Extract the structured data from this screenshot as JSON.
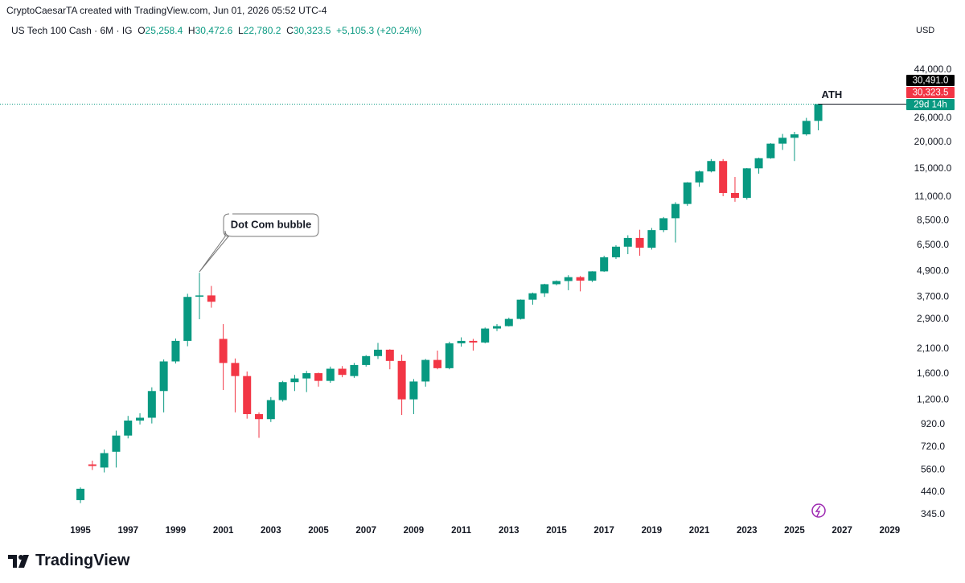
{
  "caption": "CryptoCaesarTA created with TradingView.com, Jun 01, 2026 05:52 UTC-4",
  "header": {
    "symbol": "US Tech 100 Cash · 6M · IG",
    "o_key": "O",
    "open": "25,258.4",
    "h_key": "H",
    "high": "30,472.6",
    "l_key": "L",
    "low": "22,780.2",
    "c_key": "C",
    "close": "30,323.5",
    "change": "+5,105.3 (+20.24%)"
  },
  "currency": "USD",
  "price_tags": [
    {
      "text": "30,491.0",
      "color": "#000000"
    },
    {
      "text": "30,323.5",
      "color": "#f23645"
    },
    {
      "text": "29d 14h",
      "color": "#089981"
    }
  ],
  "brand": "TradingView",
  "chart_data": {
    "type": "candlestick",
    "log_scale": true,
    "grid": false,
    "up_color": "#089981",
    "down_color": "#f23645",
    "x": [
      1995,
      1995.5,
      1996,
      1996.5,
      1997,
      1997.5,
      1998,
      1998.5,
      1999,
      1999.5,
      2000,
      2000.5,
      2001,
      2001.5,
      2002,
      2002.5,
      2003,
      2003.5,
      2004,
      2004.5,
      2005,
      2005.5,
      2006,
      2006.5,
      2007,
      2007.5,
      2008,
      2008.5,
      2009,
      2009.5,
      2010,
      2010.5,
      2011,
      2011.5,
      2012,
      2012.5,
      2013,
      2013.5,
      2014,
      2014.5,
      2015,
      2015.5,
      2016,
      2016.5,
      2017,
      2017.5,
      2018,
      2018.5,
      2019,
      2019.5,
      2020,
      2020.5,
      2021,
      2021.5,
      2022,
      2022.5,
      2023,
      2023.5,
      2024,
      2024.5,
      2025,
      2025.5,
      2026
    ],
    "open": [
      403,
      595,
      575,
      683,
      815,
      960,
      990,
      1325,
      1830,
      2290,
      3710,
      3760,
      2340,
      1800,
      1560,
      1030,
      975,
      1200,
      1460,
      1520,
      1610,
      1480,
      1690,
      1560,
      1760,
      1940,
      2080,
      1840,
      1210,
      1470,
      1860,
      1700,
      2230,
      2290,
      2250,
      2620,
      2690,
      2910,
      3590,
      3850,
      4250,
      4400,
      4590,
      4420,
      4890,
      5700,
      6400,
      7040,
      6330,
      7670,
      8730,
      10200,
      12900,
      14550,
      16300,
      11500,
      10900,
      15050,
      16800,
      19700,
      21000,
      21800,
      25258.4
    ],
    "high": [
      463,
      620,
      700,
      860,
      1010,
      1040,
      1380,
      1870,
      2350,
      3830,
      4816,
      4170,
      2750,
      1890,
      1640,
      1050,
      1240,
      1480,
      1580,
      1650,
      1620,
      1730,
      1740,
      1800,
      1960,
      2240,
      2090,
      1970,
      1510,
      1880,
      2060,
      2270,
      2380,
      2340,
      2650,
      2750,
      2950,
      3600,
      3880,
      4270,
      4430,
      4690,
      4650,
      4900,
      5800,
      6500,
      7250,
      7700,
      7850,
      8850,
      10400,
      12950,
      14700,
      16650,
      16650,
      13700,
      15100,
      16900,
      19800,
      21900,
      22400,
      26100,
      30472.6
    ],
    "low": [
      390,
      560,
      545,
      575,
      790,
      920,
      930,
      1050,
      1790,
      2160,
      2900,
      3290,
      1340,
      1050,
      980,
      795,
      945,
      1180,
      1325,
      1310,
      1390,
      1450,
      1540,
      1530,
      1730,
      1880,
      1680,
      1020,
      1030,
      1390,
      1680,
      1680,
      2150,
      2060,
      2230,
      2550,
      2680,
      2890,
      3400,
      3700,
      4200,
      3980,
      3930,
      4350,
      4860,
      5600,
      5900,
      5800,
      6200,
      7500,
      6700,
      10000,
      12300,
      14400,
      11100,
      10450,
      10700,
      14200,
      16700,
      18400,
      16300,
      21500,
      22780.2
    ],
    "close": [
      456,
      585,
      673,
      815,
      960,
      990,
      1325,
      1830,
      2290,
      3700,
      3760,
      3510,
      1800,
      1560,
      1030,
      975,
      1200,
      1460,
      1520,
      1610,
      1480,
      1690,
      1580,
      1760,
      1940,
      2080,
      1840,
      1210,
      1470,
      1860,
      1700,
      2230,
      2290,
      2250,
      2620,
      2690,
      2910,
      3590,
      3850,
      4250,
      4400,
      4590,
      4420,
      4890,
      5700,
      6400,
      7040,
      6330,
      7670,
      8730,
      10200,
      12900,
      14550,
      16300,
      11500,
      10900,
      15050,
      16800,
      19700,
      21000,
      21800,
      25250,
      30323.5
    ],
    "xlim": [
      1991.62,
      2029.63
    ],
    "xticks": [
      1995,
      1997,
      1999,
      2001,
      2003,
      2005,
      2007,
      2009,
      2011,
      2013,
      2015,
      2017,
      2019,
      2021,
      2023,
      2025,
      2027,
      2029
    ],
    "ylim": [
      315,
      60900
    ],
    "yticks": [
      {
        "value": 44000,
        "label": "44,000.0"
      },
      {
        "value": 26000,
        "label": "26,000.0"
      },
      {
        "value": 20000,
        "label": "20,000.0"
      },
      {
        "value": 15000,
        "label": "15,000.0"
      },
      {
        "value": 11000,
        "label": "11,000.0"
      },
      {
        "value": 8500,
        "label": "8,500.0"
      },
      {
        "value": 6500,
        "label": "6,500.0"
      },
      {
        "value": 4900,
        "label": "4,900.0"
      },
      {
        "value": 3700,
        "label": "3,700.0"
      },
      {
        "value": 2900,
        "label": "2,900.0"
      },
      {
        "value": 2100,
        "label": "2,100.0"
      },
      {
        "value": 1600,
        "label": "1,600.0"
      },
      {
        "value": 1200,
        "label": "1,200.0"
      },
      {
        "value": 920,
        "label": "920.0"
      },
      {
        "value": 720,
        "label": "720.0"
      },
      {
        "value": 560,
        "label": "560.0"
      },
      {
        "value": 440,
        "label": "440.0"
      },
      {
        "value": 345,
        "label": "345.0"
      }
    ],
    "annotations": {
      "bubble": "Dot Com bubble",
      "ath": "ATH"
    }
  }
}
